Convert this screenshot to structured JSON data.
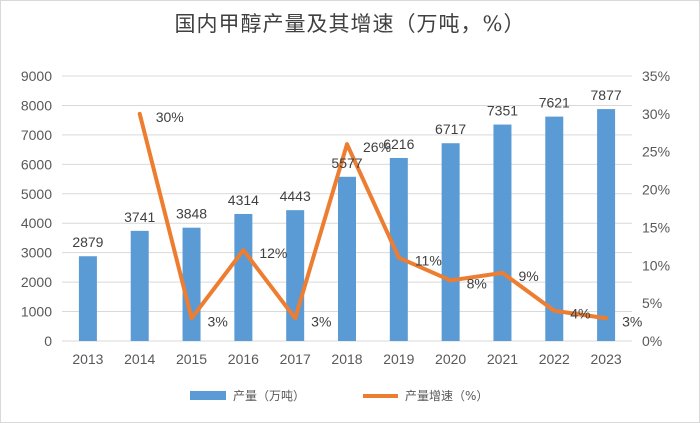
{
  "chart_data": {
    "type": "bar",
    "title": "国内甲醇产量及其增速（万吨，%）",
    "categories": [
      "2013",
      "2014",
      "2015",
      "2016",
      "2017",
      "2018",
      "2019",
      "2020",
      "2021",
      "2022",
      "2023"
    ],
    "series": [
      {
        "name": "产量（万吨）",
        "type": "bar",
        "axis": "left",
        "color": "#5b9bd5",
        "values": [
          2879,
          3741,
          3848,
          4314,
          4443,
          5577,
          6216,
          6717,
          7351,
          7621,
          7877
        ],
        "labels": [
          "2879",
          "3741",
          "3848",
          "4314",
          "4443",
          "5577",
          "6216",
          "6717",
          "7351",
          "7621",
          "7877"
        ]
      },
      {
        "name": "产量增速（%）",
        "type": "line",
        "axis": "right",
        "color": "#ed7d31",
        "x": [
          "2014",
          "2015",
          "2016",
          "2017",
          "2018",
          "2019",
          "2020",
          "2021",
          "2022",
          "2023"
        ],
        "values": [
          30,
          3,
          12,
          3,
          26,
          11,
          8,
          9,
          4,
          3
        ],
        "labels": [
          "30%",
          "3%",
          "12%",
          "3%",
          "26%",
          "11%",
          "8%",
          "9%",
          "4%",
          "3%"
        ]
      }
    ],
    "left_axis": {
      "min": 0,
      "max": 9000,
      "step": 1000,
      "ticks": [
        "0",
        "1000",
        "2000",
        "3000",
        "4000",
        "5000",
        "6000",
        "7000",
        "8000",
        "9000"
      ]
    },
    "right_axis": {
      "min": 0,
      "max": 35,
      "step": 5,
      "ticks": [
        "0%",
        "5%",
        "10%",
        "15%",
        "20%",
        "25%",
        "30%",
        "35%"
      ]
    },
    "grid": true,
    "legend_position": "bottom"
  }
}
